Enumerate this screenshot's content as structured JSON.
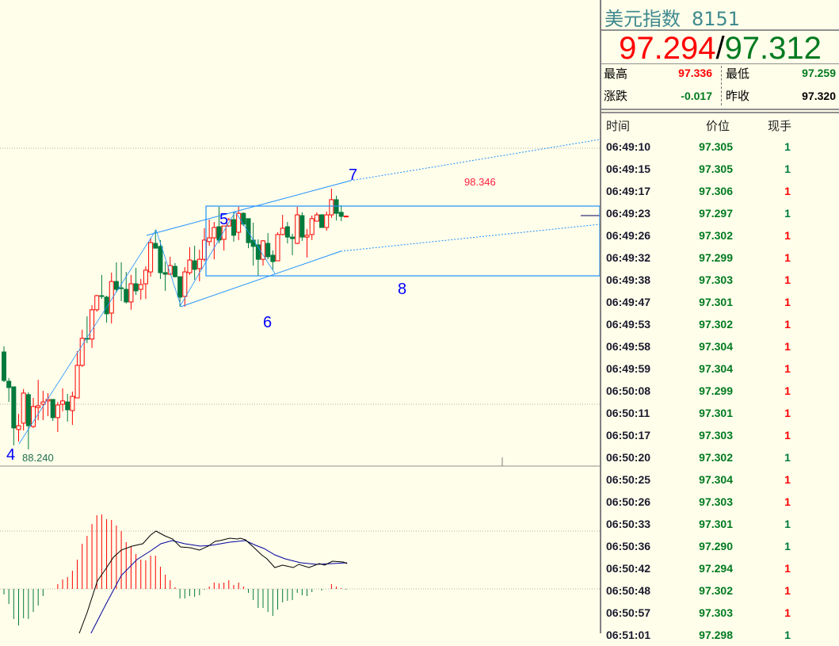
{
  "header": {
    "name": "美元指数",
    "code": "8151",
    "bid": "97.294",
    "separator": "/",
    "ask": "97.312"
  },
  "stats": {
    "high_label": "最高",
    "high": "97.336",
    "low_label": "最低",
    "low": "97.259",
    "change_label": "涨跌",
    "change": "-0.017",
    "prev_close_label": "昨收",
    "prev_close": "97.320"
  },
  "ticks": {
    "columns": [
      "时间",
      "价位",
      "现手"
    ],
    "rows": [
      {
        "time": "06:49:10",
        "price": "97.305",
        "vol": "1",
        "dir": "down"
      },
      {
        "time": "06:49:15",
        "price": "97.305",
        "vol": "1",
        "dir": "down"
      },
      {
        "time": "06:49:17",
        "price": "97.306",
        "vol": "1",
        "dir": "up"
      },
      {
        "time": "06:49:23",
        "price": "97.297",
        "vol": "1",
        "dir": "down"
      },
      {
        "time": "06:49:26",
        "price": "97.302",
        "vol": "1",
        "dir": "up"
      },
      {
        "time": "06:49:32",
        "price": "97.299",
        "vol": "1",
        "dir": "up"
      },
      {
        "time": "06:49:38",
        "price": "97.303",
        "vol": "1",
        "dir": "up"
      },
      {
        "time": "06:49:47",
        "price": "97.301",
        "vol": "1",
        "dir": "up"
      },
      {
        "time": "06:49:53",
        "price": "97.302",
        "vol": "1",
        "dir": "up"
      },
      {
        "time": "06:49:58",
        "price": "97.304",
        "vol": "1",
        "dir": "up"
      },
      {
        "time": "06:49:59",
        "price": "97.304",
        "vol": "1",
        "dir": "up"
      },
      {
        "time": "06:50:08",
        "price": "97.299",
        "vol": "1",
        "dir": "up"
      },
      {
        "time": "06:50:11",
        "price": "97.301",
        "vol": "1",
        "dir": "up"
      },
      {
        "time": "06:50:17",
        "price": "97.303",
        "vol": "1",
        "dir": "up"
      },
      {
        "time": "06:50:20",
        "price": "97.302",
        "vol": "1",
        "dir": "down"
      },
      {
        "time": "06:50:25",
        "price": "97.304",
        "vol": "1",
        "dir": "up"
      },
      {
        "time": "06:50:26",
        "price": "97.303",
        "vol": "1",
        "dir": "up"
      },
      {
        "time": "06:50:33",
        "price": "97.301",
        "vol": "1",
        "dir": "down"
      },
      {
        "time": "06:50:36",
        "price": "97.290",
        "vol": "1",
        "dir": "down"
      },
      {
        "time": "06:50:42",
        "price": "97.294",
        "vol": "1",
        "dir": "up"
      },
      {
        "time": "06:50:48",
        "price": "97.302",
        "vol": "1",
        "dir": "up"
      },
      {
        "time": "06:50:57",
        "price": "97.303",
        "vol": "1",
        "dir": "up"
      },
      {
        "time": "06:51:01",
        "price": "97.298",
        "vol": "1",
        "dir": "down"
      }
    ]
  },
  "colors": {
    "up": "#ff0000",
    "down": "#007a3d",
    "bg": "#fffeea",
    "annotation": "#1e90ff",
    "wave_label": "#0000ff",
    "title": "#3f8a8f",
    "dif": "#000000",
    "dea": "#0000a0"
  },
  "annotations": {
    "wave_labels": [
      "4",
      "5",
      "6",
      "7",
      "8"
    ],
    "high_label": "98.346",
    "low_label": "88.240"
  },
  "chart_data": {
    "type": "candlestick",
    "ohlc": [
      [
        91.88,
        92.1,
        90.69,
        90.75
      ],
      [
        90.72,
        90.85,
        89.9,
        90.47
      ],
      [
        90.5,
        90.5,
        88.18,
        88.87
      ],
      [
        88.81,
        89.43,
        88.33,
        88.96
      ],
      [
        89.06,
        90.41,
        88.77,
        90.25
      ],
      [
        90.19,
        90.28,
        88.02,
        88.96
      ],
      [
        88.93,
        90.06,
        88.87,
        89.72
      ],
      [
        89.68,
        90.78,
        89.18,
        89.75
      ],
      [
        89.81,
        90.34,
        89.18,
        89.9
      ],
      [
        89.94,
        90.25,
        89.34,
        90.0
      ],
      [
        90.0,
        90.0,
        89.15,
        89.28
      ],
      [
        89.28,
        89.9,
        88.71,
        89.78
      ],
      [
        89.81,
        90.44,
        89.53,
        89.94
      ],
      [
        89.9,
        90.22,
        89.12,
        89.59
      ],
      [
        89.56,
        90.31,
        88.99,
        90.12
      ],
      [
        90.06,
        91.91,
        90.06,
        91.35
      ],
      [
        91.35,
        92.76,
        91.29,
        92.42
      ],
      [
        92.42,
        93.29,
        92.23,
        92.39
      ],
      [
        92.39,
        93.73,
        92.04,
        93.55
      ],
      [
        93.55,
        94.14,
        93.48,
        94.11
      ],
      [
        94.11,
        94.93,
        93.98,
        94.08
      ],
      [
        94.05,
        94.11,
        93.04,
        93.39
      ],
      [
        93.42,
        95.02,
        93.01,
        94.67
      ],
      [
        94.67,
        95.43,
        94.24,
        94.36
      ],
      [
        94.42,
        95.43,
        93.89,
        94.39
      ],
      [
        94.36,
        95.05,
        93.8,
        93.86
      ],
      [
        93.86,
        94.93,
        93.55,
        94.58
      ],
      [
        94.58,
        95.21,
        94.14,
        94.3
      ],
      [
        94.36,
        94.77,
        93.95,
        94.55
      ],
      [
        94.58,
        95.27,
        93.98,
        95.12
      ],
      [
        95.05,
        96.4,
        94.86,
        96.21
      ],
      [
        96.18,
        96.72,
        95.99,
        95.99
      ],
      [
        96.06,
        96.31,
        94.77,
        95.02
      ],
      [
        95.02,
        95.46,
        94.3,
        94.96
      ],
      [
        94.96,
        95.65,
        94.93,
        95.3
      ],
      [
        95.27,
        95.4,
        94.83,
        94.86
      ],
      [
        94.86,
        94.86,
        93.67,
        94.05
      ],
      [
        94.08,
        95.24,
        93.67,
        95.05
      ],
      [
        95.02,
        96.03,
        94.93,
        95.52
      ],
      [
        95.49,
        96.09,
        94.74,
        95.15
      ],
      [
        95.18,
        95.93,
        94.68,
        95.55
      ],
      [
        95.55,
        96.78,
        95.46,
        96.31
      ],
      [
        96.25,
        97.12,
        96.09,
        96.4
      ],
      [
        96.4,
        97.03,
        95.55,
        96.81
      ],
      [
        96.84,
        97.63,
        96.18,
        96.31
      ],
      [
        96.34,
        96.87,
        95.9,
        96.87
      ],
      [
        96.87,
        97.19,
        96.84,
        97.12
      ],
      [
        97.12,
        97.44,
        96.25,
        96.5
      ],
      [
        96.62,
        97.63,
        96.31,
        97.37
      ],
      [
        97.37,
        97.41,
        96.87,
        96.94
      ],
      [
        97.16,
        97.16,
        95.99,
        96.21
      ],
      [
        96.31,
        97.0,
        95.3,
        96.06
      ],
      [
        96.12,
        96.34,
        94.9,
        95.55
      ],
      [
        95.55,
        96.31,
        95.3,
        96.28
      ],
      [
        96.18,
        96.59,
        95.55,
        95.65
      ],
      [
        95.71,
        95.9,
        95.15,
        95.46
      ],
      [
        95.49,
        96.62,
        95.49,
        96.53
      ],
      [
        96.53,
        97.31,
        96.5,
        96.78
      ],
      [
        96.84,
        97.03,
        96.18,
        96.43
      ],
      [
        96.43,
        96.56,
        95.71,
        96.37
      ],
      [
        96.18,
        97.63,
        96.15,
        97.31
      ],
      [
        97.28,
        97.41,
        96.28,
        96.43
      ],
      [
        96.43,
        96.75,
        95.62,
        96.5
      ],
      [
        96.53,
        97.28,
        96.31,
        97.16
      ],
      [
        97.06,
        97.41,
        97.06,
        97.31
      ],
      [
        97.31,
        97.34,
        96.81,
        96.81
      ],
      [
        96.81,
        97.44,
        96.68,
        97.31
      ],
      [
        97.31,
        98.35,
        97.19,
        97.91
      ],
      [
        97.91,
        98.07,
        97.09,
        97.37
      ],
      [
        97.41,
        97.69,
        97.06,
        97.25
      ],
      [
        97.25,
        97.28,
        97.25,
        97.26
      ]
    ],
    "macd_hist": [
      -7,
      -19,
      -38,
      -46,
      -37,
      -38,
      -29,
      -21,
      -9,
      0,
      0,
      6,
      12,
      15,
      23,
      37,
      57,
      67,
      82,
      93,
      94,
      88,
      87,
      80,
      73,
      59,
      54,
      44,
      37,
      36,
      42,
      42,
      28,
      18,
      11,
      2,
      -12,
      -12,
      -9,
      -10,
      -8,
      -1,
      3,
      8,
      7,
      8,
      11,
      5,
      8,
      3,
      -5,
      -14,
      -24,
      -24,
      -29,
      -34,
      -26,
      -17,
      -15,
      -14,
      -5,
      -8,
      -9,
      -4,
      0,
      -2,
      0,
      6,
      3,
      1,
      -1
    ],
    "dif": [
      [
        15.4,
        -56
      ],
      [
        17,
        -30
      ],
      [
        19.1,
        10
      ],
      [
        20.8,
        25
      ],
      [
        22.4,
        40
      ],
      [
        24,
        49
      ],
      [
        26.2,
        54
      ],
      [
        28.4,
        57
      ],
      [
        30,
        68
      ],
      [
        31.1,
        73
      ],
      [
        32.9,
        67
      ],
      [
        34.5,
        63
      ],
      [
        36.1,
        53
      ],
      [
        38.1,
        52
      ],
      [
        40,
        49
      ],
      [
        41.8,
        54
      ],
      [
        43.2,
        60
      ],
      [
        44.2,
        61
      ],
      [
        46.2,
        64
      ],
      [
        47.8,
        63
      ],
      [
        48.3,
        64
      ],
      [
        49.4,
        62
      ],
      [
        51,
        53
      ],
      [
        52.7,
        43
      ],
      [
        53.8,
        38
      ],
      [
        55.4,
        27
      ],
      [
        57,
        30
      ],
      [
        59.2,
        27
      ],
      [
        60.3,
        31
      ],
      [
        62.4,
        27
      ],
      [
        64.5,
        32
      ],
      [
        65.6,
        30
      ],
      [
        67.2,
        35
      ],
      [
        69.4,
        34
      ],
      [
        70.2,
        32
      ]
    ],
    "dea": [
      [
        17.8,
        -56
      ],
      [
        20.8,
        -20
      ],
      [
        24,
        17
      ],
      [
        27.2,
        37
      ],
      [
        30,
        48
      ],
      [
        32.1,
        57
      ],
      [
        34.4,
        61
      ],
      [
        37,
        57
      ],
      [
        40.2,
        54
      ],
      [
        42.4,
        55
      ],
      [
        46.2,
        59
      ],
      [
        49.4,
        61
      ],
      [
        51.5,
        55
      ],
      [
        53.2,
        51
      ],
      [
        55.4,
        43
      ],
      [
        57.5,
        38
      ],
      [
        60.7,
        33
      ],
      [
        64,
        31
      ],
      [
        67.2,
        32
      ],
      [
        70.2,
        33
      ]
    ]
  }
}
